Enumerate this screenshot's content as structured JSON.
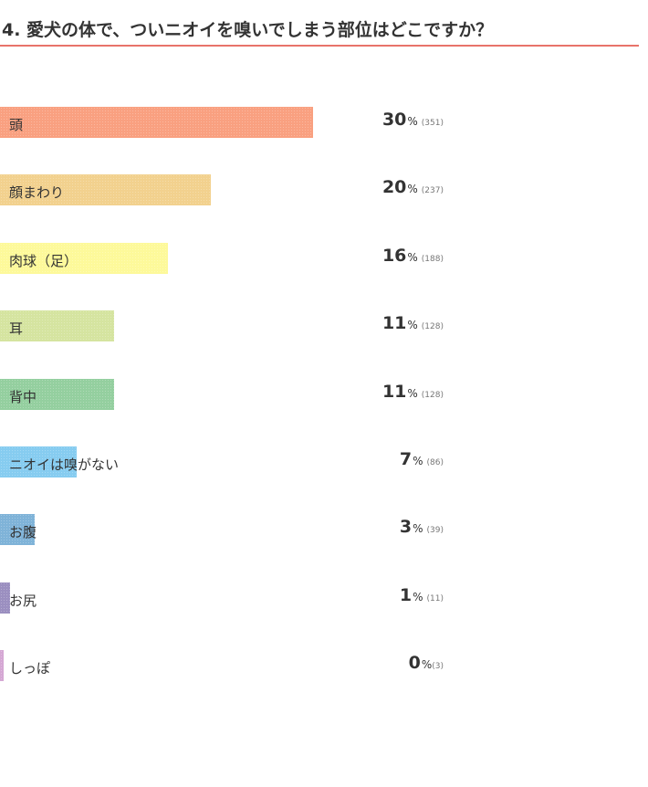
{
  "title": "4. 愛犬の体で、ついニオイを嗅いでしまう部位はどこですか？",
  "colors": {
    "title_rule": "#e8736a",
    "bars": [
      "#f9a080",
      "#f2d18e",
      "#fdf99a",
      "#d5e4a0",
      "#94cf9f",
      "#86ccf0",
      "#7fb3d8",
      "#9b8fc0",
      "#d5a8d4"
    ]
  },
  "chart_data": {
    "type": "bar",
    "orientation": "horizontal",
    "title": "4. 愛犬の体で、ついニオイを嗅いでしまう部位はどこですか？",
    "categories": [
      "頭",
      "顔まわり",
      "肉球（足）",
      "耳",
      "背中",
      "ニオイは嗅がない",
      "お腹",
      "お尻",
      "しっぽ"
    ],
    "values": [
      30,
      20,
      16,
      11,
      11,
      7,
      3,
      1,
      0
    ],
    "counts": [
      351,
      237,
      188,
      128,
      128,
      86,
      39,
      11,
      3
    ],
    "unit": "%",
    "count_labels": [
      "(351)",
      "(237)",
      "(188)",
      "(128)",
      "(128)",
      "(86)",
      "(39)",
      "(11)",
      "(3)"
    ],
    "grid": false,
    "legend": "none"
  }
}
